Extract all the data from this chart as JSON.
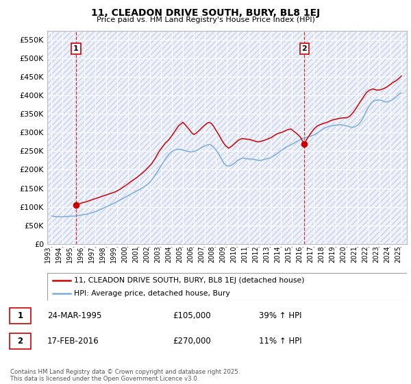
{
  "title": "11, CLEADON DRIVE SOUTH, BURY, BL8 1EJ",
  "subtitle": "Price paid vs. HM Land Registry's House Price Index (HPI)",
  "ylim": [
    0,
    575000
  ],
  "yticks": [
    0,
    50000,
    100000,
    150000,
    200000,
    250000,
    300000,
    350000,
    400000,
    450000,
    500000,
    550000
  ],
  "xlim_start": 1992.6,
  "xlim_end": 2025.5,
  "xticks": [
    1993,
    1994,
    1995,
    1996,
    1997,
    1998,
    1999,
    2000,
    2001,
    2002,
    2003,
    2004,
    2005,
    2006,
    2007,
    2008,
    2009,
    2010,
    2011,
    2012,
    2013,
    2014,
    2015,
    2016,
    2017,
    2018,
    2019,
    2020,
    2021,
    2022,
    2023,
    2024,
    2025
  ],
  "background_color": "#ffffff",
  "plot_bg_color": "#eef2fa",
  "grid_color": "#ffffff",
  "hatch_color": "#c8d0e8",
  "red_line_color": "#cc0000",
  "blue_line_color": "#7aaddd",
  "marker1_x": 1995.23,
  "marker1_y": 105000,
  "marker2_x": 2016.12,
  "marker2_y": 270000,
  "vline1_x": 1995.23,
  "vline2_x": 2016.12,
  "annotation1_label": "1",
  "annotation2_label": "2",
  "legend_red_label": "11, CLEADON DRIVE SOUTH, BURY, BL8 1EJ (detached house)",
  "legend_blue_label": "HPI: Average price, detached house, Bury",
  "table_row1": [
    "1",
    "24-MAR-1995",
    "£105,000",
    "39% ↑ HPI"
  ],
  "table_row2": [
    "2",
    "17-FEB-2016",
    "£270,000",
    "11% ↑ HPI"
  ],
  "footer": "Contains HM Land Registry data © Crown copyright and database right 2025.\nThis data is licensed under the Open Government Licence v3.0.",
  "hpi_data": {
    "years": [
      1993.0,
      1993.25,
      1993.5,
      1993.75,
      1994.0,
      1994.25,
      1994.5,
      1994.75,
      1995.0,
      1995.25,
      1995.5,
      1995.75,
      1996.0,
      1996.25,
      1996.5,
      1996.75,
      1997.0,
      1997.25,
      1997.5,
      1997.75,
      1998.0,
      1998.25,
      1998.5,
      1998.75,
      1999.0,
      1999.25,
      1999.5,
      1999.75,
      2000.0,
      2000.25,
      2000.5,
      2000.75,
      2001.0,
      2001.25,
      2001.5,
      2001.75,
      2002.0,
      2002.25,
      2002.5,
      2002.75,
      2003.0,
      2003.25,
      2003.5,
      2003.75,
      2004.0,
      2004.25,
      2004.5,
      2004.75,
      2005.0,
      2005.25,
      2005.5,
      2005.75,
      2006.0,
      2006.25,
      2006.5,
      2006.75,
      2007.0,
      2007.25,
      2007.5,
      2007.75,
      2008.0,
      2008.25,
      2008.5,
      2008.75,
      2009.0,
      2009.25,
      2009.5,
      2009.75,
      2010.0,
      2010.25,
      2010.5,
      2010.75,
      2011.0,
      2011.25,
      2011.5,
      2011.75,
      2012.0,
      2012.25,
      2012.5,
      2012.75,
      2013.0,
      2013.25,
      2013.5,
      2013.75,
      2014.0,
      2014.25,
      2014.5,
      2014.75,
      2015.0,
      2015.25,
      2015.5,
      2015.75,
      2016.0,
      2016.25,
      2016.5,
      2016.75,
      2017.0,
      2017.25,
      2017.5,
      2017.75,
      2018.0,
      2018.25,
      2018.5,
      2018.75,
      2019.0,
      2019.25,
      2019.5,
      2019.75,
      2020.0,
      2020.25,
      2020.5,
      2020.75,
      2021.0,
      2021.25,
      2021.5,
      2021.75,
      2022.0,
      2022.25,
      2022.5,
      2022.75,
      2023.0,
      2023.25,
      2023.5,
      2023.75,
      2024.0,
      2024.25,
      2024.5,
      2024.75,
      2025.0
    ],
    "values": [
      75000,
      74000,
      73500,
      73000,
      73000,
      73500,
      74000,
      74500,
      75000,
      75500,
      76500,
      78000,
      79000,
      80500,
      82500,
      84500,
      87000,
      90000,
      93000,
      96500,
      100000,
      103000,
      107000,
      110000,
      114000,
      118000,
      122000,
      126000,
      130000,
      134000,
      138000,
      142000,
      146000,
      150000,
      155000,
      160000,
      167000,
      176000,
      187000,
      198000,
      210000,
      222000,
      233000,
      242000,
      249000,
      253000,
      255000,
      255000,
      253000,
      251000,
      249000,
      248000,
      249000,
      252000,
      256000,
      260000,
      264000,
      267000,
      268000,
      263000,
      255000,
      244000,
      231000,
      218000,
      210000,
      210000,
      213000,
      218000,
      225000,
      229000,
      232000,
      230000,
      229000,
      229000,
      228000,
      226000,
      225000,
      226000,
      228000,
      230000,
      232000,
      236000,
      241000,
      246000,
      252000,
      257000,
      262000,
      265000,
      269000,
      273000,
      277000,
      281000,
      285000,
      287000,
      289000,
      291000,
      294000,
      298000,
      303000,
      308000,
      313000,
      316000,
      318000,
      319000,
      320000,
      321000,
      321000,
      320000,
      318000,
      316000,
      314000,
      316000,
      320000,
      328000,
      340000,
      356000,
      370000,
      380000,
      386000,
      388000,
      388000,
      386000,
      383000,
      383000,
      386000,
      390000,
      396000,
      403000,
      408000
    ]
  },
  "price_data": {
    "years": [
      1995.23,
      1995.4,
      1995.6,
      1995.8,
      1996.0,
      1996.2,
      1996.4,
      1996.6,
      1996.8,
      1997.0,
      1997.2,
      1997.4,
      1997.6,
      1997.8,
      1998.0,
      1998.2,
      1998.4,
      1998.6,
      1998.8,
      1999.0,
      1999.3,
      1999.6,
      1999.9,
      2000.2,
      2000.5,
      2000.8,
      2001.0,
      2001.3,
      2001.6,
      2001.9,
      2002.2,
      2002.5,
      2002.8,
      2003.1,
      2003.4,
      2003.7,
      2004.0,
      2004.3,
      2004.6,
      2004.9,
      2005.0,
      2005.2,
      2005.4,
      2005.6,
      2005.8,
      2006.0,
      2006.2,
      2006.5,
      2006.8,
      2007.0,
      2007.2,
      2007.4,
      2007.6,
      2007.8,
      2008.0,
      2008.3,
      2008.6,
      2008.9,
      2009.2,
      2009.5,
      2009.8,
      2010.1,
      2010.4,
      2010.7,
      2011.0,
      2011.3,
      2011.6,
      2011.9,
      2012.2,
      2012.5,
      2012.8,
      2013.1,
      2013.4,
      2013.7,
      2014.0,
      2014.3,
      2014.6,
      2014.9,
      2015.1,
      2015.4,
      2015.7,
      2016.12,
      2016.4,
      2016.7,
      2017.0,
      2017.3,
      2017.6,
      2017.9,
      2018.2,
      2018.5,
      2018.8,
      2019.1,
      2019.4,
      2019.7,
      2020.0,
      2020.3,
      2020.6,
      2020.9,
      2021.2,
      2021.5,
      2021.8,
      2022.1,
      2022.4,
      2022.7,
      2023.0,
      2023.3,
      2023.6,
      2023.9,
      2024.2,
      2024.5,
      2024.8,
      2025.0
    ],
    "values": [
      105000,
      107000,
      109000,
      111000,
      112000,
      114000,
      116000,
      118000,
      120000,
      122000,
      124000,
      126000,
      128000,
      130000,
      132000,
      134000,
      136000,
      138000,
      140000,
      143000,
      148000,
      154000,
      160000,
      167000,
      173000,
      179000,
      184000,
      191000,
      199000,
      208000,
      218000,
      232000,
      248000,
      260000,
      272000,
      280000,
      292000,
      305000,
      318000,
      325000,
      328000,
      322000,
      315000,
      308000,
      300000,
      295000,
      298000,
      306000,
      315000,
      320000,
      325000,
      328000,
      325000,
      318000,
      308000,
      294000,
      278000,
      265000,
      258000,
      264000,
      272000,
      280000,
      284000,
      283000,
      282000,
      280000,
      277000,
      275000,
      277000,
      280000,
      283000,
      287000,
      293000,
      298000,
      300000,
      304000,
      308000,
      310000,
      305000,
      298000,
      290000,
      270000,
      285000,
      298000,
      310000,
      318000,
      322000,
      325000,
      328000,
      332000,
      335000,
      337000,
      339000,
      340000,
      340000,
      345000,
      355000,
      368000,
      382000,
      395000,
      408000,
      415000,
      418000,
      415000,
      415000,
      418000,
      422000,
      428000,
      435000,
      440000,
      447000,
      453000
    ]
  }
}
